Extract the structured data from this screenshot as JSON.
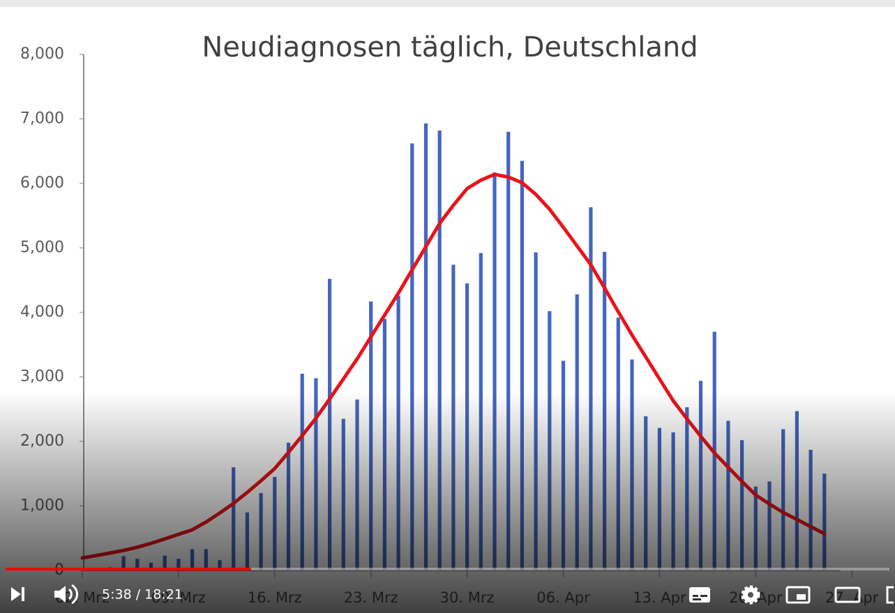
{
  "chart_data": {
    "type": "bar",
    "title": "Neudiagnosen täglich, Deutschland",
    "categories": [
      "02. Mrz",
      null,
      null,
      null,
      null,
      null,
      null,
      "09. Mrz",
      null,
      null,
      null,
      null,
      null,
      null,
      "16. Mrz",
      null,
      null,
      null,
      null,
      null,
      null,
      "23. Mrz",
      null,
      null,
      null,
      null,
      null,
      null,
      "30. Mrz",
      null,
      null,
      null,
      null,
      null,
      null,
      "06. Apr",
      null,
      null,
      null,
      null,
      null,
      null,
      "13. Apr",
      null,
      null,
      null,
      null,
      null,
      null,
      "20. Apr",
      null,
      null,
      null,
      null,
      null,
      null,
      "27. Apr"
    ],
    "series": [
      {
        "type": "bar",
        "color": "#4466c0",
        "values": [
          null,
          null,
          50,
          220,
          180,
          120,
          230,
          180,
          330,
          330,
          160,
          1600,
          900,
          1200,
          1450,
          1980,
          3050,
          2980,
          4520,
          2350,
          2650,
          4170,
          3900,
          4260,
          6620,
          6930,
          6820,
          4740,
          4450,
          4920,
          6170,
          6800,
          6350,
          4930,
          4020,
          3250,
          4280,
          5630,
          4940,
          3920,
          3270,
          2390,
          2210,
          2140,
          2530,
          2940,
          3700,
          2320,
          2020,
          1300,
          1380,
          2190,
          2470,
          1870,
          1500,
          null,
          null
        ]
      },
      {
        "type": "line",
        "color": "#e8141a",
        "values": [
          195,
          230,
          270,
          310,
          360,
          420,
          490,
          560,
          630,
          750,
          890,
          1040,
          1210,
          1390,
          1580,
          1830,
          2090,
          2360,
          2660,
          2970,
          3280,
          3620,
          3960,
          4300,
          4660,
          5020,
          5380,
          5660,
          5920,
          6050,
          6140,
          6100,
          6010,
          5830,
          5600,
          5320,
          5030,
          4740,
          4380,
          4010,
          3650,
          3310,
          2970,
          2630,
          2350,
          2080,
          1820,
          1600,
          1380,
          1170,
          1030,
          900,
          790,
          680,
          570,
          null,
          null
        ]
      }
    ],
    "ylim": [
      0,
      8000
    ],
    "yticks": [
      0,
      {
        "value": 1000,
        "label": "1,000"
      },
      {
        "value": 2000,
        "label": "2,000"
      },
      {
        "value": 3000,
        "label": "3,000"
      },
      {
        "value": 4000,
        "label": "4,000"
      },
      {
        "value": 5000,
        "label": "5,000"
      },
      {
        "value": 6000,
        "label": "6,000"
      },
      {
        "value": 7000,
        "label": "7,000"
      },
      {
        "value": 8000,
        "label": "8,000"
      }
    ],
    "grid": false
  },
  "player": {
    "time": "5:38 / 18:21"
  }
}
